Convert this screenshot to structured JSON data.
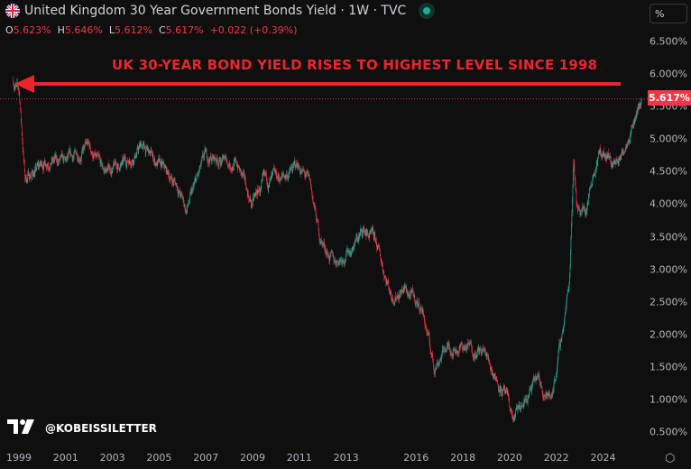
{
  "header": {
    "title": "United Kingdom 30 Year Government Bonds Yield · 1W · TVC",
    "flag_icon": "uk-flag-icon",
    "status_icon": "market-status-dot"
  },
  "ohlc": {
    "o_label": "O",
    "o": "5.623%",
    "h_label": "H",
    "h": "5.646%",
    "l_label": "L",
    "l": "5.612%",
    "c_label": "C",
    "c": "5.617%",
    "change": "+0.022 (+0.39%)"
  },
  "unit_label": "%",
  "price_tag": "5.617%",
  "annotation": "UK 30-YEAR BOND YIELD RISES TO HIGHEST LEVEL SINCE 1998",
  "brand": {
    "logo": "TV",
    "handle": "@KOBEISSILETTER"
  },
  "colors": {
    "up": "#22ab94",
    "down": "#f23645",
    "annotation": "#e8262b",
    "background": "#0f0f0f"
  },
  "chart_data": {
    "type": "candlestick",
    "title": "United Kingdom 30 Year Government Bonds Yield",
    "interval": "1W",
    "y_ticks": [
      "6.500%",
      "6.000%",
      "5.500%",
      "5.000%",
      "4.500%",
      "4.000%",
      "3.500%",
      "3.000%",
      "2.500%",
      "2.000%",
      "1.500%",
      "1.000%",
      "0.500%"
    ],
    "ylim": [
      0.5,
      6.5
    ],
    "x_ticks": [
      "1999",
      "2001",
      "2003",
      "2005",
      "2007",
      "2009",
      "2011",
      "2013",
      "2016",
      "2018",
      "2020",
      "2022",
      "2024"
    ],
    "last_close": 5.617,
    "approx_trend": [
      [
        1998.8,
        5.9
      ],
      [
        1999.05,
        5.7
      ],
      [
        1999.3,
        4.4
      ],
      [
        1999.7,
        4.5
      ],
      [
        2000.3,
        4.7
      ],
      [
        2001,
        4.6
      ],
      [
        2002,
        4.9
      ],
      [
        2002.6,
        4.5
      ],
      [
        2003.5,
        4.6
      ],
      [
        2004.3,
        4.9
      ],
      [
        2005,
        4.6
      ],
      [
        2005.8,
        4.3
      ],
      [
        2006.2,
        3.9
      ],
      [
        2007,
        4.7
      ],
      [
        2007.5,
        4.7
      ],
      [
        2008.4,
        4.6
      ],
      [
        2009,
        4.0
      ],
      [
        2009.5,
        4.3
      ],
      [
        2010.3,
        4.4
      ],
      [
        2011,
        4.6
      ],
      [
        2011.5,
        4.3
      ],
      [
        2011.9,
        3.5
      ],
      [
        2012.5,
        3.1
      ],
      [
        2013.2,
        3.3
      ],
      [
        2013.8,
        3.6
      ],
      [
        2014.3,
        3.4
      ],
      [
        2015,
        2.6
      ],
      [
        2015.5,
        2.7
      ],
      [
        2016.3,
        2.4
      ],
      [
        2016.8,
        1.5
      ],
      [
        2017.3,
        1.8
      ],
      [
        2018.3,
        1.8
      ],
      [
        2019,
        1.7
      ],
      [
        2019.8,
        1.1
      ],
      [
        2020.2,
        0.7
      ],
      [
        2020.6,
        0.9
      ],
      [
        2021.2,
        1.3
      ],
      [
        2021.8,
        1.0
      ],
      [
        2022.2,
        1.8
      ],
      [
        2022.6,
        2.8
      ],
      [
        2022.78,
        4.8
      ],
      [
        2022.9,
        4.0
      ],
      [
        2023.3,
        3.9
      ],
      [
        2023.6,
        4.5
      ],
      [
        2023.9,
        4.8
      ],
      [
        2024.4,
        4.6
      ],
      [
        2024.8,
        4.7
      ],
      [
        2025.2,
        5.2
      ],
      [
        2025.7,
        5.617
      ]
    ]
  }
}
